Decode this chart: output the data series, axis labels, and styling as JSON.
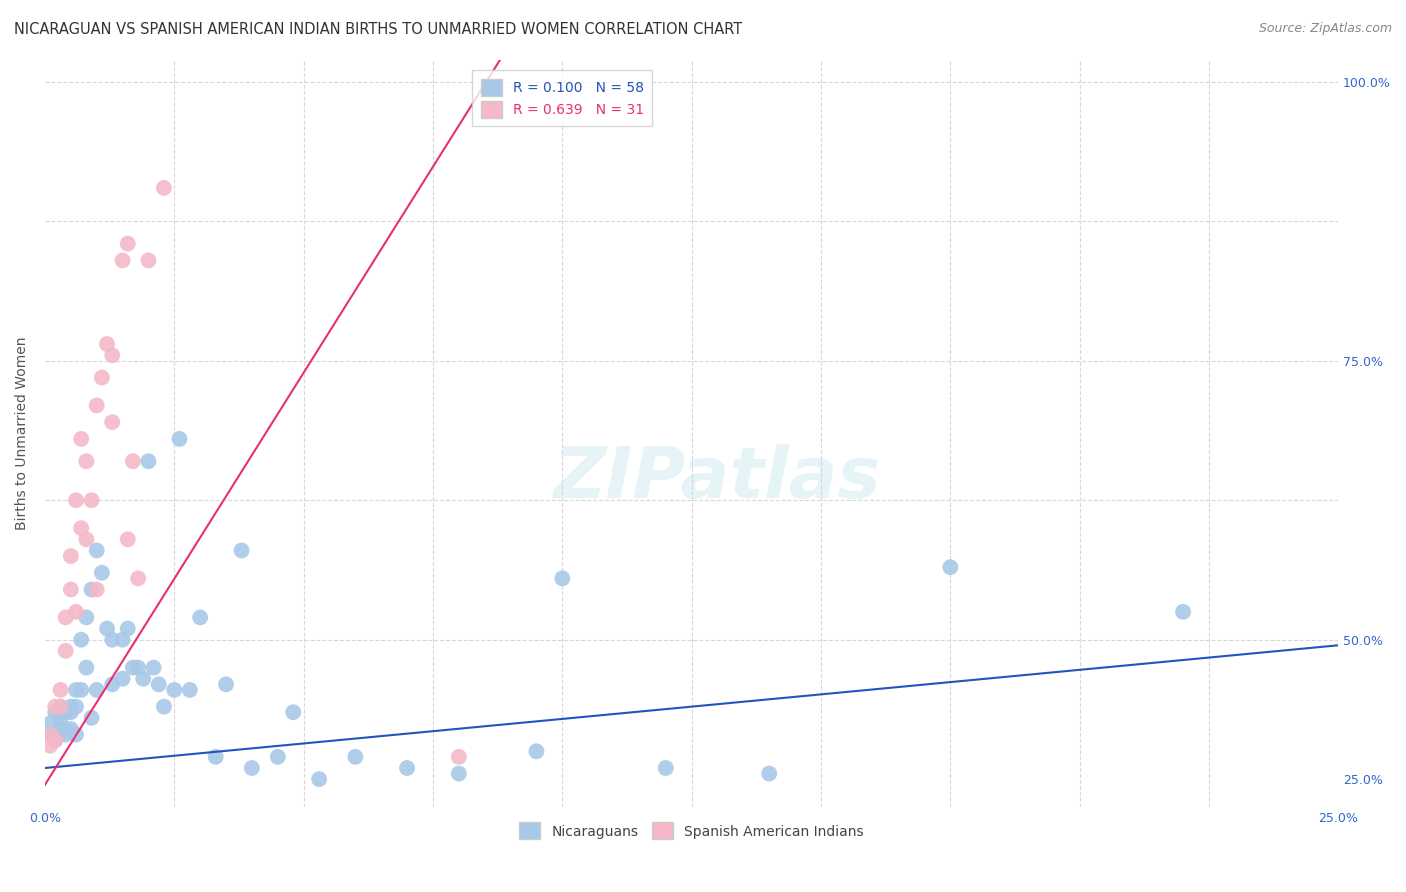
{
  "title": "NICARAGUAN VS SPANISH AMERICAN INDIAN BIRTHS TO UNMARRIED WOMEN CORRELATION CHART",
  "source": "Source: ZipAtlas.com",
  "ylabel": "Births to Unmarried Women",
  "xlim": [
    0.0,
    0.25
  ],
  "ylim": [
    0.35,
    1.02
  ],
  "xticks": [
    0.0,
    0.025,
    0.05,
    0.075,
    0.1,
    0.125,
    0.15,
    0.175,
    0.2,
    0.225,
    0.25
  ],
  "yticks": [
    0.35,
    0.5,
    0.625,
    0.75,
    0.875,
    1.0
  ],
  "ytick_labels_right": [
    "",
    "50.0%",
    "",
    "75.0%",
    "",
    "100.0%"
  ],
  "watermark": "ZIPatlas",
  "blue_color": "#a8c8e8",
  "pink_color": "#f4b8c8",
  "blue_line_color": "#2255bb",
  "pink_line_color": "#e83070",
  "r_blue": 0.1,
  "n_blue": 58,
  "r_pink": 0.639,
  "n_pink": 31,
  "blue_scatter_x": [
    0.001,
    0.001,
    0.002,
    0.002,
    0.003,
    0.003,
    0.003,
    0.004,
    0.004,
    0.004,
    0.005,
    0.005,
    0.005,
    0.006,
    0.006,
    0.006,
    0.007,
    0.007,
    0.008,
    0.008,
    0.009,
    0.009,
    0.01,
    0.01,
    0.011,
    0.012,
    0.013,
    0.013,
    0.015,
    0.015,
    0.016,
    0.017,
    0.018,
    0.019,
    0.02,
    0.021,
    0.022,
    0.023,
    0.025,
    0.026,
    0.028,
    0.03,
    0.033,
    0.035,
    0.038,
    0.04,
    0.045,
    0.048,
    0.053,
    0.06,
    0.07,
    0.08,
    0.095,
    0.1,
    0.12,
    0.14,
    0.175,
    0.22
  ],
  "blue_scatter_y": [
    0.425,
    0.415,
    0.435,
    0.41,
    0.43,
    0.42,
    0.44,
    0.435,
    0.415,
    0.42,
    0.44,
    0.435,
    0.42,
    0.455,
    0.44,
    0.415,
    0.5,
    0.455,
    0.52,
    0.475,
    0.545,
    0.43,
    0.58,
    0.455,
    0.56,
    0.51,
    0.5,
    0.46,
    0.5,
    0.465,
    0.51,
    0.475,
    0.475,
    0.465,
    0.66,
    0.475,
    0.46,
    0.44,
    0.455,
    0.68,
    0.455,
    0.52,
    0.395,
    0.46,
    0.58,
    0.385,
    0.395,
    0.435,
    0.375,
    0.395,
    0.385,
    0.38,
    0.4,
    0.555,
    0.385,
    0.38,
    0.565,
    0.525
  ],
  "pink_scatter_x": [
    0.001,
    0.001,
    0.002,
    0.002,
    0.003,
    0.003,
    0.004,
    0.004,
    0.005,
    0.005,
    0.006,
    0.006,
    0.007,
    0.007,
    0.008,
    0.008,
    0.009,
    0.01,
    0.01,
    0.011,
    0.012,
    0.013,
    0.013,
    0.015,
    0.016,
    0.016,
    0.017,
    0.018,
    0.02,
    0.023,
    0.08
  ],
  "pink_scatter_y": [
    0.415,
    0.405,
    0.44,
    0.41,
    0.455,
    0.44,
    0.52,
    0.49,
    0.575,
    0.545,
    0.625,
    0.525,
    0.68,
    0.6,
    0.66,
    0.59,
    0.625,
    0.71,
    0.545,
    0.735,
    0.765,
    0.755,
    0.695,
    0.84,
    0.59,
    0.855,
    0.66,
    0.555,
    0.84,
    0.905,
    0.395
  ],
  "title_fontsize": 10.5,
  "source_fontsize": 9,
  "label_fontsize": 10,
  "tick_fontsize": 9,
  "legend_fontsize": 10,
  "background_color": "#ffffff",
  "grid_color": "#d8d8d8",
  "blue_line_x": [
    0.0,
    0.25
  ],
  "blue_line_y": [
    0.385,
    0.495
  ],
  "pink_line_x": [
    0.0,
    0.088
  ],
  "pink_line_y": [
    0.37,
    1.02
  ]
}
